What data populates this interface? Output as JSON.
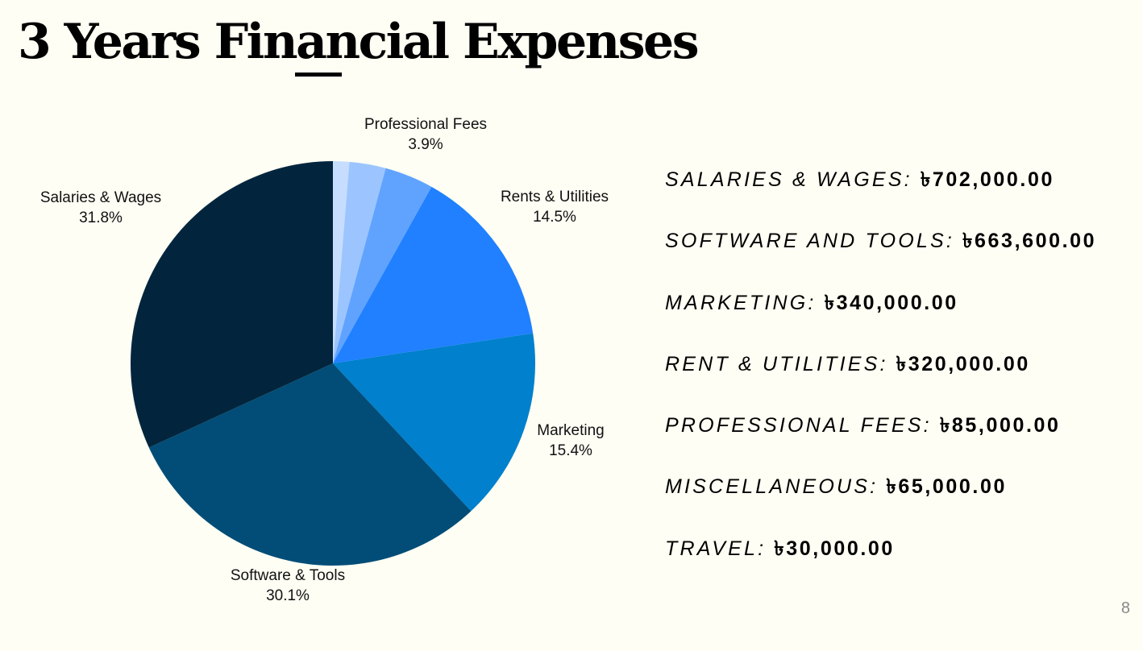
{
  "slide": {
    "title": "3 Years Financial Expenses",
    "page_number": "8"
  },
  "chart_data": {
    "type": "pie",
    "title": "",
    "start_angle_deg": 0,
    "direction": "clockwise",
    "slices": [
      {
        "label": "",
        "percent_label": "",
        "value": 1.3,
        "color": "#c7ddff"
      },
      {
        "label": "",
        "percent_label": "",
        "value": 2.9,
        "color": "#9cc5ff"
      },
      {
        "label": "Professional Fees",
        "percent_label": "3.9%",
        "value": 3.9,
        "color": "#60a3ff"
      },
      {
        "label": "Rents & Utilities",
        "percent_label": "14.5%",
        "value": 14.5,
        "color": "#2080ff"
      },
      {
        "label": "Marketing",
        "percent_label": "15.4%",
        "value": 15.4,
        "color": "#0080cd"
      },
      {
        "label": "Software & Tools",
        "percent_label": "30.1%",
        "value": 30.1,
        "color": "#014d77"
      },
      {
        "label": "Salaries & Wages",
        "percent_label": "31.8%",
        "value": 31.8,
        "color": "#02253d"
      }
    ]
  },
  "legend": {
    "items": [
      {
        "name": "Salaries & Wages:",
        "value": "৳702,000.00"
      },
      {
        "name": "Software and Tools:",
        "value": "৳663,600.00"
      },
      {
        "name": "Marketing:",
        "value": "৳340,000.00"
      },
      {
        "name": "Rent & Utilities:",
        "value": "৳320,000.00"
      },
      {
        "name": "Professional Fees:",
        "value": "৳85,000.00"
      },
      {
        "name": "Miscellaneous:",
        "value": "৳65,000.00"
      },
      {
        "name": "Travel:",
        "value": "৳30,000.00"
      }
    ]
  }
}
